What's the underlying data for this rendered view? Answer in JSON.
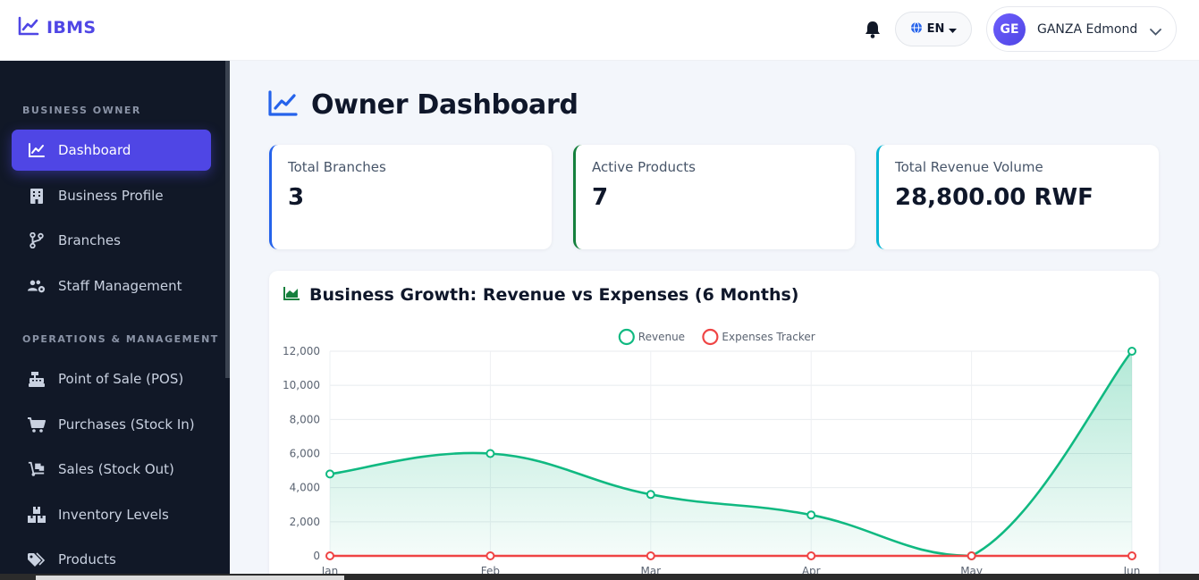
{
  "header": {
    "brand": "IBMS",
    "language": "EN",
    "user_initials": "GE",
    "user_name": "GANZA Edmond"
  },
  "sidebar": {
    "sections": [
      {
        "title": "BUSINESS OWNER"
      },
      {
        "title": "OPERATIONS & MANAGEMENT"
      }
    ],
    "items": [
      {
        "label": "Dashboard",
        "icon": "chart-line-icon",
        "active": true
      },
      {
        "label": "Business Profile",
        "icon": "building-icon"
      },
      {
        "label": "Branches",
        "icon": "code-branch-icon"
      },
      {
        "label": "Staff Management",
        "icon": "users-gear-icon"
      },
      {
        "label": "Point of Sale (POS)",
        "icon": "cash-register-icon"
      },
      {
        "label": "Purchases (Stock In)",
        "icon": "cart-icon"
      },
      {
        "label": "Sales (Stock Out)",
        "icon": "dolly-icon"
      },
      {
        "label": "Inventory Levels",
        "icon": "boxes-icon"
      },
      {
        "label": "Products",
        "icon": "tags-icon"
      }
    ]
  },
  "main": {
    "title": "Owner Dashboard",
    "cards": [
      {
        "label": "Total Branches",
        "value": "3",
        "accent": "#2563eb"
      },
      {
        "label": "Active Products",
        "value": "7",
        "accent": "#15803d"
      },
      {
        "label": "Total Revenue Volume",
        "value": "28,800.00 RWF",
        "accent": "#06b6d4"
      }
    ]
  },
  "chart_data": {
    "type": "area",
    "title": "Business Growth: Revenue vs Expenses (6 Months)",
    "categories": [
      "Jan",
      "Feb",
      "Mar",
      "Apr",
      "May",
      "Jun"
    ],
    "series": [
      {
        "name": "Revenue",
        "values": [
          4800,
          6000,
          3600,
          2400,
          0,
          12000
        ],
        "color": "#10b981"
      },
      {
        "name": "Expenses Tracker",
        "values": [
          0,
          0,
          0,
          0,
          0,
          0
        ],
        "color": "#ef4444"
      }
    ],
    "yticks": [
      "0",
      "2,000",
      "4,000",
      "6,000",
      "8,000",
      "10,000",
      "12,000"
    ],
    "ylim": [
      0,
      12000
    ],
    "grid": true,
    "legend": "top-center"
  }
}
